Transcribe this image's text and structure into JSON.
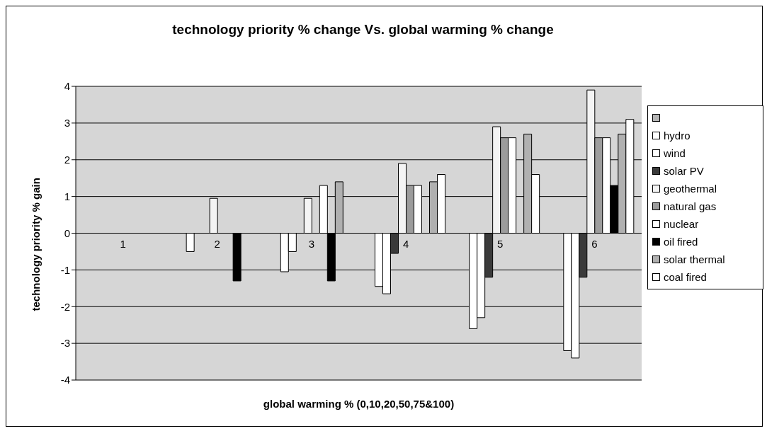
{
  "chart_data": {
    "type": "bar",
    "title": "technology priority % change Vs. global warming % change",
    "xlabel": "global warming % (0,10,20,50,75&100)",
    "ylabel": "technology priority % gain",
    "categories": [
      "1",
      "2",
      "3",
      "4",
      "5",
      "6"
    ],
    "series": [
      {
        "color": "#b4b4b4",
        "values": [
          null,
          null,
          null,
          null,
          null,
          null
        ]
      },
      {
        "name": "hydro",
        "color": "#ffffff",
        "values": [
          null,
          -0.5,
          -1.05,
          -1.45,
          -2.6,
          -3.2
        ]
      },
      {
        "name": "wind",
        "color": "#ffffff",
        "values": [
          null,
          null,
          -0.5,
          -1.65,
          -2.3,
          -3.4
        ]
      },
      {
        "name": "solar PV",
        "color": "#3a3a3a",
        "values": [
          null,
          null,
          null,
          -0.55,
          -1.2,
          -1.2
        ]
      },
      {
        "name": "geothermal",
        "color": "#f4f4f4",
        "values": [
          null,
          0.95,
          0.95,
          1.9,
          2.9,
          3.9
        ]
      },
      {
        "name": "natural gas",
        "color": "#9c9c9c",
        "values": [
          null,
          null,
          null,
          1.3,
          2.6,
          2.6
        ]
      },
      {
        "name": "nuclear",
        "color": "#ffffff",
        "values": [
          null,
          null,
          1.3,
          1.3,
          2.6,
          2.6
        ]
      },
      {
        "name": "oil fired",
        "color": "#000000",
        "values": [
          null,
          -1.3,
          -1.3,
          null,
          null,
          1.3
        ]
      },
      {
        "name": "solar thermal",
        "color": "#b0b0b0",
        "values": [
          null,
          null,
          1.4,
          1.4,
          2.7,
          2.7
        ]
      },
      {
        "name": "coal fired",
        "color": "#ffffff",
        "values": [
          null,
          null,
          null,
          1.6,
          1.6,
          3.1
        ]
      }
    ],
    "ylim": [
      -4,
      4
    ],
    "yticks": [
      -4,
      -3,
      -2,
      -1,
      0,
      1,
      2,
      3,
      4
    ],
    "grid": "y",
    "legend": "right"
  }
}
